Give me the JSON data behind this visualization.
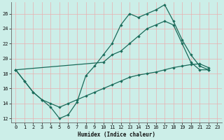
{
  "xlabel": "Humidex (Indice chaleur)",
  "bg_color": "#cceee8",
  "line_color": "#1a6b5a",
  "grid_color": "#e8b0b0",
  "xlim": [
    -0.5,
    23.5
  ],
  "ylim": [
    11.5,
    27.5
  ],
  "xticks": [
    0,
    1,
    2,
    3,
    4,
    5,
    6,
    7,
    8,
    9,
    10,
    11,
    12,
    13,
    14,
    15,
    16,
    17,
    18,
    19,
    20,
    21,
    22,
    23
  ],
  "yticks": [
    12,
    14,
    16,
    18,
    20,
    22,
    24,
    26
  ],
  "line1_x": [
    0,
    1,
    2,
    3,
    4,
    5,
    6,
    7,
    8,
    9,
    10,
    11,
    12,
    13,
    14,
    15,
    16,
    17,
    18,
    19,
    20,
    21,
    22
  ],
  "line1_y": [
    18.5,
    17.0,
    15.5,
    14.5,
    13.5,
    12.0,
    12.5,
    14.2,
    17.7,
    19.0,
    20.5,
    22.0,
    24.5,
    26.0,
    25.5,
    26.0,
    26.5,
    27.2,
    25.0,
    22.5,
    20.5,
    19.0,
    18.5
  ],
  "line2_x": [
    0,
    10,
    11,
    12,
    13,
    14,
    15,
    16,
    17,
    18,
    19,
    20,
    21,
    22
  ],
  "line2_y": [
    18.5,
    19.5,
    20.5,
    21.0,
    22.0,
    23.0,
    24.0,
    24.5,
    25.0,
    24.5,
    22.0,
    19.5,
    18.5,
    18.5
  ],
  "line3_x": [
    0,
    1,
    2,
    3,
    4,
    5,
    6,
    7,
    8,
    9,
    10,
    11,
    12,
    13,
    14,
    15,
    16,
    17,
    18,
    19,
    20,
    21,
    22
  ],
  "line3_y": [
    18.5,
    17.0,
    15.5,
    14.5,
    14.0,
    13.5,
    14.0,
    14.5,
    15.0,
    15.5,
    16.0,
    16.5,
    17.0,
    17.5,
    17.8,
    18.0,
    18.2,
    18.5,
    18.8,
    19.0,
    19.2,
    19.3,
    18.8
  ],
  "figsize": [
    3.2,
    2.0
  ],
  "dpi": 100
}
